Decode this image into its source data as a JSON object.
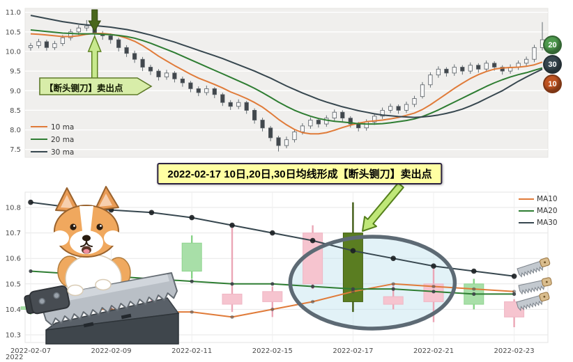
{
  "banner": {
    "text": "2022-02-17 10日,20日,30日均线形成【断头铡刀】卖出点",
    "bg": "#ffffa3"
  },
  "chart_data": [
    {
      "name": "daily-overview",
      "type": "candlestick",
      "ylim": [
        7.3,
        11.1
      ],
      "yticks": [
        7.5,
        8,
        8.5,
        9,
        9.5,
        10,
        10.5,
        11
      ],
      "grid": true,
      "plot_bg": "#f0efed",
      "legend": {
        "position": "lower-left",
        "entries": [
          {
            "label": "10 ma",
            "color": "#e07b39"
          },
          {
            "label": "20 ma",
            "color": "#2e7d32"
          },
          {
            "label": "30 ma",
            "color": "#37474f"
          }
        ]
      },
      "annotation": {
        "label": "【断头铡刀】卖出点",
        "candle_index": 8
      },
      "badges": [
        {
          "label": "20",
          "color": "#4e9a4e"
        },
        {
          "label": "30",
          "color": "#37474f"
        },
        {
          "label": "10",
          "color": "#bf5321"
        }
      ],
      "candles": [
        [
          10.1,
          10.22,
          10.02,
          10.15
        ],
        [
          10.15,
          10.32,
          10.08,
          10.25
        ],
        [
          10.25,
          10.3,
          10.02,
          10.1
        ],
        [
          10.1,
          10.27,
          10.04,
          10.2
        ],
        [
          10.2,
          10.42,
          10.14,
          10.35
        ],
        [
          10.35,
          10.57,
          10.28,
          10.5
        ],
        [
          10.5,
          10.67,
          10.42,
          10.6
        ],
        [
          10.6,
          10.8,
          10.52,
          10.65
        ],
        [
          10.65,
          10.7,
          10.36,
          10.45
        ],
        [
          10.45,
          10.52,
          10.3,
          10.4
        ],
        [
          10.4,
          10.46,
          10.2,
          10.3
        ],
        [
          10.3,
          10.35,
          10.0,
          10.1
        ],
        [
          10.1,
          10.16,
          9.86,
          9.95
        ],
        [
          9.95,
          10.02,
          9.71,
          9.8
        ],
        [
          9.8,
          9.86,
          9.5,
          9.6
        ],
        [
          9.6,
          9.66,
          9.4,
          9.5
        ],
        [
          9.5,
          9.55,
          9.26,
          9.35
        ],
        [
          9.35,
          9.53,
          9.28,
          9.45
        ],
        [
          9.45,
          9.5,
          9.21,
          9.3
        ],
        [
          9.3,
          9.36,
          9.1,
          9.2
        ],
        [
          9.2,
          9.25,
          8.96,
          9.05
        ],
        [
          9.05,
          9.11,
          8.86,
          8.95
        ],
        [
          8.95,
          9.13,
          8.88,
          9.05
        ],
        [
          9.05,
          9.09,
          8.81,
          8.9
        ],
        [
          8.9,
          8.95,
          8.61,
          8.7
        ],
        [
          8.7,
          8.76,
          8.51,
          8.6
        ],
        [
          8.6,
          8.78,
          8.53,
          8.7
        ],
        [
          8.7,
          8.74,
          8.41,
          8.5
        ],
        [
          8.5,
          8.55,
          8.16,
          8.25
        ],
        [
          8.25,
          8.31,
          7.96,
          8.05
        ],
        [
          8.05,
          8.1,
          7.71,
          7.8
        ],
        [
          7.8,
          7.85,
          7.45,
          7.6
        ],
        [
          7.6,
          7.83,
          7.53,
          7.75
        ],
        [
          7.75,
          8.02,
          7.68,
          7.95
        ],
        [
          7.95,
          8.17,
          7.88,
          8.1
        ],
        [
          8.1,
          8.32,
          8.03,
          8.25
        ],
        [
          8.25,
          8.3,
          8.06,
          8.15
        ],
        [
          8.15,
          8.37,
          8.08,
          8.3
        ],
        [
          8.3,
          8.52,
          8.23,
          8.45
        ],
        [
          8.45,
          8.5,
          8.21,
          8.3
        ],
        [
          8.3,
          8.35,
          8.06,
          8.15
        ],
        [
          8.15,
          8.2,
          7.96,
          8.05
        ],
        [
          8.05,
          8.27,
          7.98,
          8.2
        ],
        [
          8.2,
          8.42,
          8.13,
          8.35
        ],
        [
          8.35,
          8.57,
          8.28,
          8.5
        ],
        [
          8.5,
          8.67,
          8.43,
          8.6
        ],
        [
          8.6,
          8.65,
          8.41,
          8.5
        ],
        [
          8.5,
          8.72,
          8.43,
          8.65
        ],
        [
          8.65,
          8.87,
          8.58,
          8.8
        ],
        [
          8.85,
          9.22,
          8.8,
          9.15
        ],
        [
          9.15,
          9.47,
          9.08,
          9.4
        ],
        [
          9.4,
          9.62,
          9.33,
          9.55
        ],
        [
          9.55,
          9.6,
          9.36,
          9.45
        ],
        [
          9.45,
          9.67,
          9.38,
          9.6
        ],
        [
          9.6,
          9.65,
          9.41,
          9.5
        ],
        [
          9.5,
          9.72,
          9.43,
          9.65
        ],
        [
          9.65,
          9.7,
          9.46,
          9.55
        ],
        [
          9.55,
          9.77,
          9.48,
          9.7
        ],
        [
          9.7,
          9.75,
          9.51,
          9.6
        ],
        [
          9.6,
          9.65,
          9.41,
          9.5
        ],
        [
          9.5,
          9.67,
          9.43,
          9.6
        ],
        [
          9.6,
          9.77,
          9.53,
          9.7
        ],
        [
          9.7,
          9.87,
          9.63,
          9.8
        ],
        [
          9.8,
          10.17,
          9.73,
          10.1
        ],
        [
          10.1,
          10.75,
          10.03,
          10.3
        ]
      ],
      "series": [
        {
          "name": "10 ma",
          "color": "#e07b39",
          "values": [
            10.45,
            10.44,
            10.42,
            10.4,
            10.38,
            10.38,
            10.4,
            10.44,
            10.46,
            10.46,
            10.44,
            10.4,
            10.34,
            10.26,
            10.15,
            10.02,
            9.88,
            9.76,
            9.64,
            9.53,
            9.42,
            9.32,
            9.24,
            9.16,
            9.07,
            8.97,
            8.89,
            8.8,
            8.7,
            8.58,
            8.43,
            8.27,
            8.13,
            8.01,
            7.93,
            7.9,
            7.9,
            7.93,
            7.99,
            8.06,
            8.12,
            8.17,
            8.21,
            8.23,
            8.25,
            8.28,
            8.32,
            8.37,
            8.43,
            8.52,
            8.64,
            8.78,
            8.92,
            9.06,
            9.19,
            9.31,
            9.41,
            9.49,
            9.55,
            9.58,
            9.59,
            9.6,
            9.62,
            9.66,
            9.73
          ]
        },
        {
          "name": "20 ma",
          "color": "#2e7d32",
          "values": [
            10.55,
            10.53,
            10.51,
            10.49,
            10.47,
            10.46,
            10.45,
            10.45,
            10.45,
            10.44,
            10.43,
            10.41,
            10.38,
            10.34,
            10.28,
            10.21,
            10.13,
            10.05,
            9.97,
            9.88,
            9.79,
            9.7,
            9.61,
            9.52,
            9.43,
            9.34,
            9.25,
            9.16,
            9.06,
            8.95,
            8.83,
            8.71,
            8.6,
            8.5,
            8.42,
            8.35,
            8.29,
            8.25,
            8.22,
            8.2,
            8.18,
            8.16,
            8.15,
            8.15,
            8.16,
            8.18,
            8.21,
            8.24,
            8.28,
            8.34,
            8.42,
            8.51,
            8.61,
            8.71,
            8.81,
            8.91,
            9.01,
            9.11,
            9.2,
            9.28,
            9.35,
            9.41,
            9.46,
            9.52,
            9.58
          ]
        },
        {
          "name": "30 ma",
          "color": "#37474f",
          "values": [
            10.92,
            10.88,
            10.84,
            10.8,
            10.76,
            10.73,
            10.7,
            10.68,
            10.66,
            10.64,
            10.62,
            10.59,
            10.56,
            10.52,
            10.47,
            10.42,
            10.36,
            10.3,
            10.24,
            10.17,
            10.1,
            10.03,
            9.96,
            9.89,
            9.82,
            9.74,
            9.66,
            9.58,
            9.5,
            9.41,
            9.32,
            9.22,
            9.12,
            9.03,
            8.94,
            8.86,
            8.78,
            8.71,
            8.65,
            8.59,
            8.54,
            8.49,
            8.45,
            8.41,
            8.38,
            8.36,
            8.34,
            8.33,
            8.32,
            8.33,
            8.35,
            8.38,
            8.42,
            8.47,
            8.53,
            8.61,
            8.7,
            8.8,
            8.9,
            9.0,
            9.12,
            9.24,
            9.35,
            9.45,
            9.55
          ]
        }
      ]
    },
    {
      "name": "zoom-february",
      "type": "candlestick",
      "ylim": [
        10.27,
        10.86
      ],
      "yticks": [
        10.3,
        10.4,
        10.5,
        10.6,
        10.7,
        10.8
      ],
      "grid": true,
      "dates": [
        "2022-02-07",
        "2022-02-08",
        "2022-02-09",
        "2022-02-10",
        "2022-02-11",
        "2022-02-14",
        "2022-02-15",
        "2022-02-16",
        "2022-02-17",
        "2022-02-18",
        "2022-02-21",
        "2022-02-22",
        "2022-02-23"
      ],
      "xticklabels": [
        "2022-02-07",
        "2022-02-09",
        "2022-02-11",
        "2022-02-15",
        "2022-02-17",
        "2022-02-21",
        "2022-02-23"
      ],
      "corner_label": "2022",
      "up_color": "#f6c4cf",
      "down_color": "#a8dfa8",
      "highlight_color": "#5a7d21",
      "highlight_index": 8,
      "candles": [
        [
          10.41,
          10.44,
          10.38,
          10.4
        ],
        [
          10.4,
          10.45,
          10.37,
          10.43
        ],
        [
          10.43,
          10.47,
          10.4,
          10.45
        ],
        [
          10.45,
          10.52,
          10.43,
          10.5
        ],
        [
          10.66,
          10.69,
          10.52,
          10.55
        ],
        [
          10.42,
          10.72,
          10.39,
          10.46
        ],
        [
          10.43,
          10.49,
          10.37,
          10.47
        ],
        [
          10.5,
          10.73,
          10.48,
          10.7
        ],
        [
          10.7,
          10.82,
          10.39,
          10.43
        ],
        [
          10.42,
          10.5,
          10.4,
          10.45
        ],
        [
          10.43,
          10.56,
          10.35,
          10.5
        ],
        [
          10.5,
          10.52,
          10.4,
          10.42
        ],
        [
          10.37,
          10.44,
          10.33,
          10.43
        ]
      ],
      "legend": {
        "position": "upper-right",
        "entries": [
          {
            "label": "MA10",
            "color": "#e07b39"
          },
          {
            "label": "MA20",
            "color": "#2e7d32"
          },
          {
            "label": "MA30",
            "color": "#37474f"
          }
        ]
      },
      "series": [
        {
          "name": "MA10",
          "color": "#e07b39",
          "values": [
            10.41,
            10.4,
            10.4,
            10.39,
            10.39,
            10.37,
            10.4,
            10.43,
            10.47,
            10.5,
            10.49,
            10.48,
            10.47
          ]
        },
        {
          "name": "MA20",
          "color": "#2e7d32",
          "values": [
            10.55,
            10.54,
            10.53,
            10.52,
            10.51,
            10.5,
            10.5,
            10.49,
            10.48,
            10.48,
            10.47,
            10.46,
            10.46
          ]
        },
        {
          "name": "MA30",
          "color": "#37474f",
          "values": [
            10.82,
            10.8,
            10.79,
            10.78,
            10.76,
            10.73,
            10.7,
            10.67,
            10.63,
            10.6,
            10.57,
            10.55,
            10.53
          ]
        }
      ],
      "ellipse_annotation": {
        "center_date": "2022-02-17",
        "center_value": 10.5
      }
    }
  ]
}
